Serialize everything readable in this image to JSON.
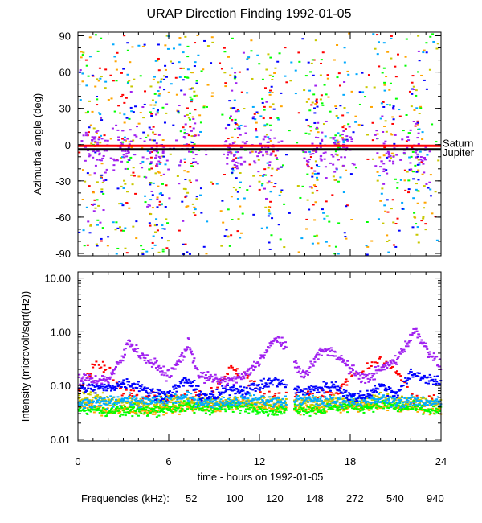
{
  "chart_data": [
    {
      "type": "scatter",
      "title": "URAP Direction Finding  1992-01-05",
      "xlabel": "",
      "ylabel": "Azimuthal angle (deg)",
      "xlim": [
        0,
        24
      ],
      "ylim": [
        -92,
        93
      ],
      "yticks": [
        "90",
        "60",
        "30",
        "0",
        "-30",
        "-60",
        "-90"
      ],
      "ytick_values": [
        90,
        60,
        30,
        0,
        -30,
        -60,
        -90
      ],
      "grid": false,
      "reference_lines": [
        {
          "name": "Saturn",
          "y": -1,
          "color": "#ff0000"
        },
        {
          "name": "Jupiter",
          "y": -4,
          "color": "#000000"
        }
      ]
    },
    {
      "type": "scatter",
      "xlabel": "time - hours on 1992-01-05",
      "ylabel": "Intensity (microvolt/sqrt(Hz))",
      "xlim": [
        0,
        24
      ],
      "ylim": [
        0.0093,
        13
      ],
      "yscale": "log",
      "yticks": [
        "10.00",
        "1.00",
        "0.10",
        "0.01"
      ],
      "ytick_values": [
        10,
        1,
        0.1,
        0.01
      ],
      "xticks": [
        "0",
        "6",
        "12",
        "18",
        "24"
      ],
      "xtick_values": [
        0,
        6,
        12,
        18,
        24
      ],
      "grid": false,
      "data_gap_hours": [
        13.75,
        14.25
      ],
      "x": [
        0,
        1,
        2,
        3,
        3.3,
        4,
        5,
        6,
        7,
        7.3,
        8,
        9,
        10,
        11,
        12,
        13,
        13.2,
        14.3,
        15,
        16,
        17,
        18,
        19,
        20,
        21,
        22,
        22.3,
        23,
        24
      ],
      "series": [
        {
          "name": "52",
          "color": "#ff0000",
          "values": [
            0.07,
            0.25,
            0.2,
            0.07,
            0.07,
            0.06,
            0.06,
            0.06,
            0.06,
            0.06,
            0.07,
            0.08,
            0.2,
            0.15,
            0.08,
            0.07,
            0.07,
            0.07,
            0.07,
            0.06,
            0.07,
            0.15,
            0.2,
            0.3,
            0.2,
            0.06,
            0.06,
            0.05,
            0.05
          ]
        },
        {
          "name": "100",
          "color": "#ffa500",
          "values": [
            0.045,
            0.04,
            0.035,
            0.035,
            0.035,
            0.035,
            0.035,
            0.036,
            0.038,
            0.04,
            0.04,
            0.04,
            0.045,
            0.045,
            0.04,
            0.038,
            0.038,
            0.035,
            0.035,
            0.038,
            0.04,
            0.04,
            0.04,
            0.045,
            0.04,
            0.04,
            0.04,
            0.038,
            0.035
          ]
        },
        {
          "name": "120",
          "color": "#c8c800",
          "values": [
            0.055,
            0.065,
            0.05,
            0.05,
            0.05,
            0.048,
            0.048,
            0.05,
            0.05,
            0.05,
            0.05,
            0.05,
            0.05,
            0.05,
            0.05,
            0.05,
            0.05,
            0.05,
            0.05,
            0.05,
            0.05,
            0.05,
            0.05,
            0.06,
            0.05,
            0.05,
            0.05,
            0.05,
            0.05
          ]
        },
        {
          "name": "148",
          "color": "#00ff00",
          "values": [
            0.04,
            0.035,
            0.033,
            0.033,
            0.033,
            0.034,
            0.035,
            0.038,
            0.04,
            0.04,
            0.038,
            0.037,
            0.04,
            0.04,
            0.038,
            0.033,
            0.033,
            0.038,
            0.036,
            0.035,
            0.04,
            0.04,
            0.04,
            0.045,
            0.04,
            0.038,
            0.038,
            0.035,
            0.033
          ]
        },
        {
          "name": "272",
          "color": "#00aaff",
          "values": [
            0.045,
            0.045,
            0.05,
            0.055,
            0.055,
            0.05,
            0.05,
            0.055,
            0.06,
            0.06,
            0.05,
            0.048,
            0.05,
            0.055,
            0.055,
            0.05,
            0.05,
            0.05,
            0.055,
            0.05,
            0.05,
            0.055,
            0.05,
            0.055,
            0.05,
            0.05,
            0.05,
            0.05,
            0.048
          ]
        },
        {
          "name": "540",
          "color": "#0000ff",
          "values": [
            0.09,
            0.09,
            0.09,
            0.11,
            0.11,
            0.1,
            0.07,
            0.07,
            0.12,
            0.12,
            0.07,
            0.06,
            0.09,
            0.08,
            0.1,
            0.12,
            0.12,
            0.08,
            0.08,
            0.09,
            0.1,
            0.06,
            0.065,
            0.1,
            0.07,
            0.16,
            0.16,
            0.14,
            0.11
          ]
        },
        {
          "name": "940",
          "color": "#a020f0",
          "values": [
            0.13,
            0.13,
            0.13,
            0.35,
            0.7,
            0.4,
            0.25,
            0.15,
            0.4,
            0.6,
            0.15,
            0.13,
            0.12,
            0.15,
            0.3,
            0.7,
            0.8,
            0.25,
            0.15,
            0.45,
            0.4,
            0.2,
            0.13,
            0.2,
            0.3,
            0.8,
            1.1,
            0.5,
            0.22
          ]
        }
      ]
    }
  ],
  "labels": {
    "title": "URAP Direction Finding  1992-01-05",
    "top_ylabel": "Azimuthal angle (deg)",
    "bottom_ylabel": "Intensity (microvolt/sqrt(Hz))",
    "xlabel": "time - hours on 1992-01-05",
    "saturn": "Saturn",
    "jupiter": "Jupiter",
    "legend_title": "Frequencies (kHz):"
  }
}
